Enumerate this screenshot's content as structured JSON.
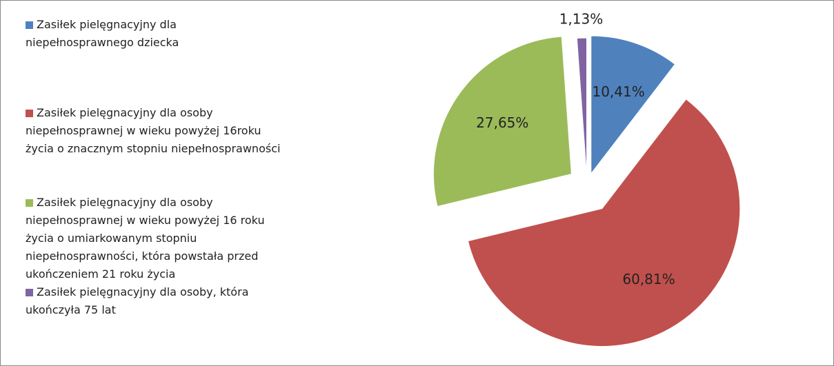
{
  "chart_data": {
    "type": "pie",
    "categories": [
      "Zasiłek pielęgnacyjny dla niepełnosprawnego dziecka",
      "Zasiłek pielęgnacyjny dla osoby niepełnosprawnej w wieku powyżej 16roku życia o znacznym stopniu niepełnosprawności",
      "Zasiłek pielęgnacyjny dla osoby niepełnosprawnej w wieku powyżej 16 roku życia o umiarkowanym stopniu niepełnosprawności, która powstała przed ukończeniem 21 roku życia",
      "Zasiłek pielęgnacyjny dla osoby, która ukończyła 75 lat"
    ],
    "values": [
      10.41,
      60.81,
      27.65,
      1.13
    ],
    "value_labels": [
      "10,41%",
      "60,81%",
      "27,65%",
      "1,13%"
    ],
    "colors": [
      "#4f81bd",
      "#c0504d",
      "#9bbb59",
      "#8064a2"
    ],
    "legend": "left"
  }
}
